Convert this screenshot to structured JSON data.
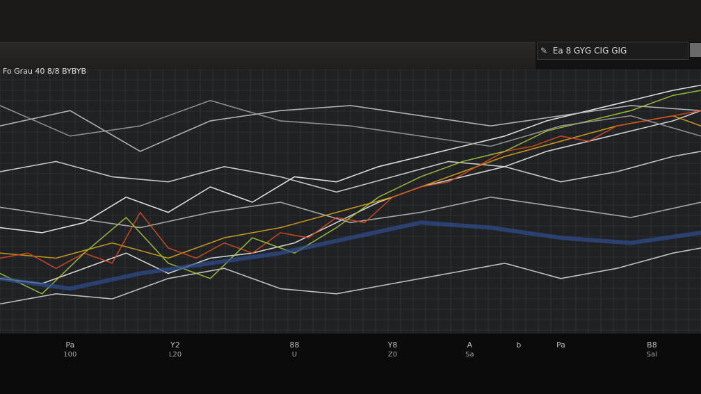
{
  "header": {
    "legend_text": "Ea 8 GYG CIG GIG",
    "title": "Fo Grau 40 8/8 BYBYB"
  },
  "chart_data": {
    "type": "line",
    "title": "Fo Grau 40 8/8 BYBYB",
    "xlabel": "",
    "ylabel": "",
    "grid": true,
    "legend": "top-right",
    "xlim": [
      0,
      100
    ],
    "ylim": [
      0,
      100
    ],
    "x_ticks": [
      {
        "x": 10,
        "label": "Pa",
        "sub": "100"
      },
      {
        "x": 25,
        "label": "Y2",
        "sub": "L20"
      },
      {
        "x": 42,
        "label": "88",
        "sub": "U"
      },
      {
        "x": 56,
        "label": "Y8",
        "sub": "Z0"
      },
      {
        "x": 67,
        "label": "A",
        "sub": "Sa"
      },
      {
        "x": 74,
        "label": "b",
        "sub": ""
      },
      {
        "x": 80,
        "label": "Pa",
        "sub": ""
      },
      {
        "x": 93,
        "label": "B8",
        "sub": "Sal"
      }
    ],
    "series": [
      {
        "color": "#f2f2f2",
        "x": [
          0,
          6,
          12,
          18,
          24,
          30,
          36,
          42,
          48,
          54,
          60,
          66,
          72,
          78,
          84,
          90,
          96,
          100
        ],
        "y": [
          40,
          38,
          42,
          52,
          46,
          56,
          50,
          60,
          58,
          64,
          68,
          72,
          76,
          82,
          86,
          90,
          94,
          96
        ]
      },
      {
        "color": "#e6e6e6",
        "x": [
          0,
          6,
          12,
          18,
          24,
          30,
          36,
          42,
          48,
          54,
          60,
          66,
          72,
          78,
          84,
          90,
          96,
          100
        ],
        "y": [
          20,
          18,
          24,
          30,
          22,
          28,
          30,
          34,
          42,
          50,
          56,
          60,
          64,
          70,
          74,
          78,
          82,
          86
        ]
      },
      {
        "color": "#d8d8d8",
        "x": [
          0,
          8,
          16,
          24,
          32,
          40,
          48,
          56,
          64,
          72,
          80,
          88,
          96,
          100
        ],
        "y": [
          62,
          66,
          60,
          58,
          64,
          60,
          54,
          60,
          66,
          64,
          58,
          62,
          68,
          70
        ]
      },
      {
        "color": "#cfcfcf",
        "x": [
          0,
          8,
          16,
          24,
          32,
          40,
          48,
          56,
          64,
          72,
          80,
          88,
          96,
          100
        ],
        "y": [
          10,
          14,
          12,
          20,
          24,
          16,
          14,
          18,
          22,
          26,
          20,
          24,
          30,
          32
        ]
      },
      {
        "color": "#bfbfbf",
        "x": [
          0,
          10,
          20,
          30,
          40,
          50,
          60,
          70,
          80,
          90,
          100
        ],
        "y": [
          80,
          86,
          70,
          82,
          86,
          88,
          84,
          80,
          84,
          88,
          86
        ]
      },
      {
        "color": "#b5b5b5",
        "x": [
          0,
          10,
          20,
          30,
          40,
          50,
          60,
          70,
          80,
          90,
          100
        ],
        "y": [
          48,
          44,
          40,
          46,
          50,
          42,
          46,
          52,
          48,
          44,
          50
        ]
      },
      {
        "color": "#d4a017",
        "x": [
          0,
          8,
          16,
          24,
          32,
          40,
          48,
          56,
          64,
          72,
          80,
          88,
          96,
          100
        ],
        "y": [
          30,
          28,
          34,
          28,
          36,
          40,
          46,
          52,
          60,
          68,
          74,
          80,
          84,
          80
        ]
      },
      {
        "color": "#d14a1e",
        "x": [
          0,
          4,
          8,
          12,
          16,
          20,
          24,
          28,
          32,
          36,
          40,
          44,
          48,
          52,
          56,
          60,
          64,
          68,
          72,
          76,
          80,
          84,
          88,
          92,
          96,
          100
        ],
        "y": [
          28,
          30,
          24,
          30,
          26,
          46,
          32,
          28,
          34,
          30,
          38,
          36,
          44,
          42,
          52,
          56,
          58,
          64,
          70,
          72,
          76,
          74,
          80,
          82,
          84,
          86
        ]
      },
      {
        "color": "#9fc23a",
        "x": [
          0,
          6,
          12,
          18,
          24,
          30,
          36,
          42,
          48,
          54,
          60,
          66,
          72,
          78,
          84,
          90,
          96,
          100
        ],
        "y": [
          22,
          14,
          30,
          44,
          26,
          20,
          36,
          30,
          40,
          52,
          60,
          66,
          70,
          78,
          82,
          86,
          92,
          94
        ]
      },
      {
        "color": "#2f4f8f",
        "x": [
          0,
          10,
          20,
          30,
          40,
          50,
          60,
          70,
          80,
          90,
          100
        ],
        "y": [
          20,
          16,
          22,
          26,
          30,
          36,
          42,
          40,
          36,
          34,
          38
        ]
      },
      {
        "color": "#9a9a9a",
        "x": [
          0,
          10,
          20,
          30,
          40,
          50,
          60,
          70,
          80,
          90,
          100
        ],
        "y": [
          88,
          76,
          80,
          90,
          82,
          80,
          76,
          72,
          80,
          84,
          76
        ]
      }
    ]
  }
}
